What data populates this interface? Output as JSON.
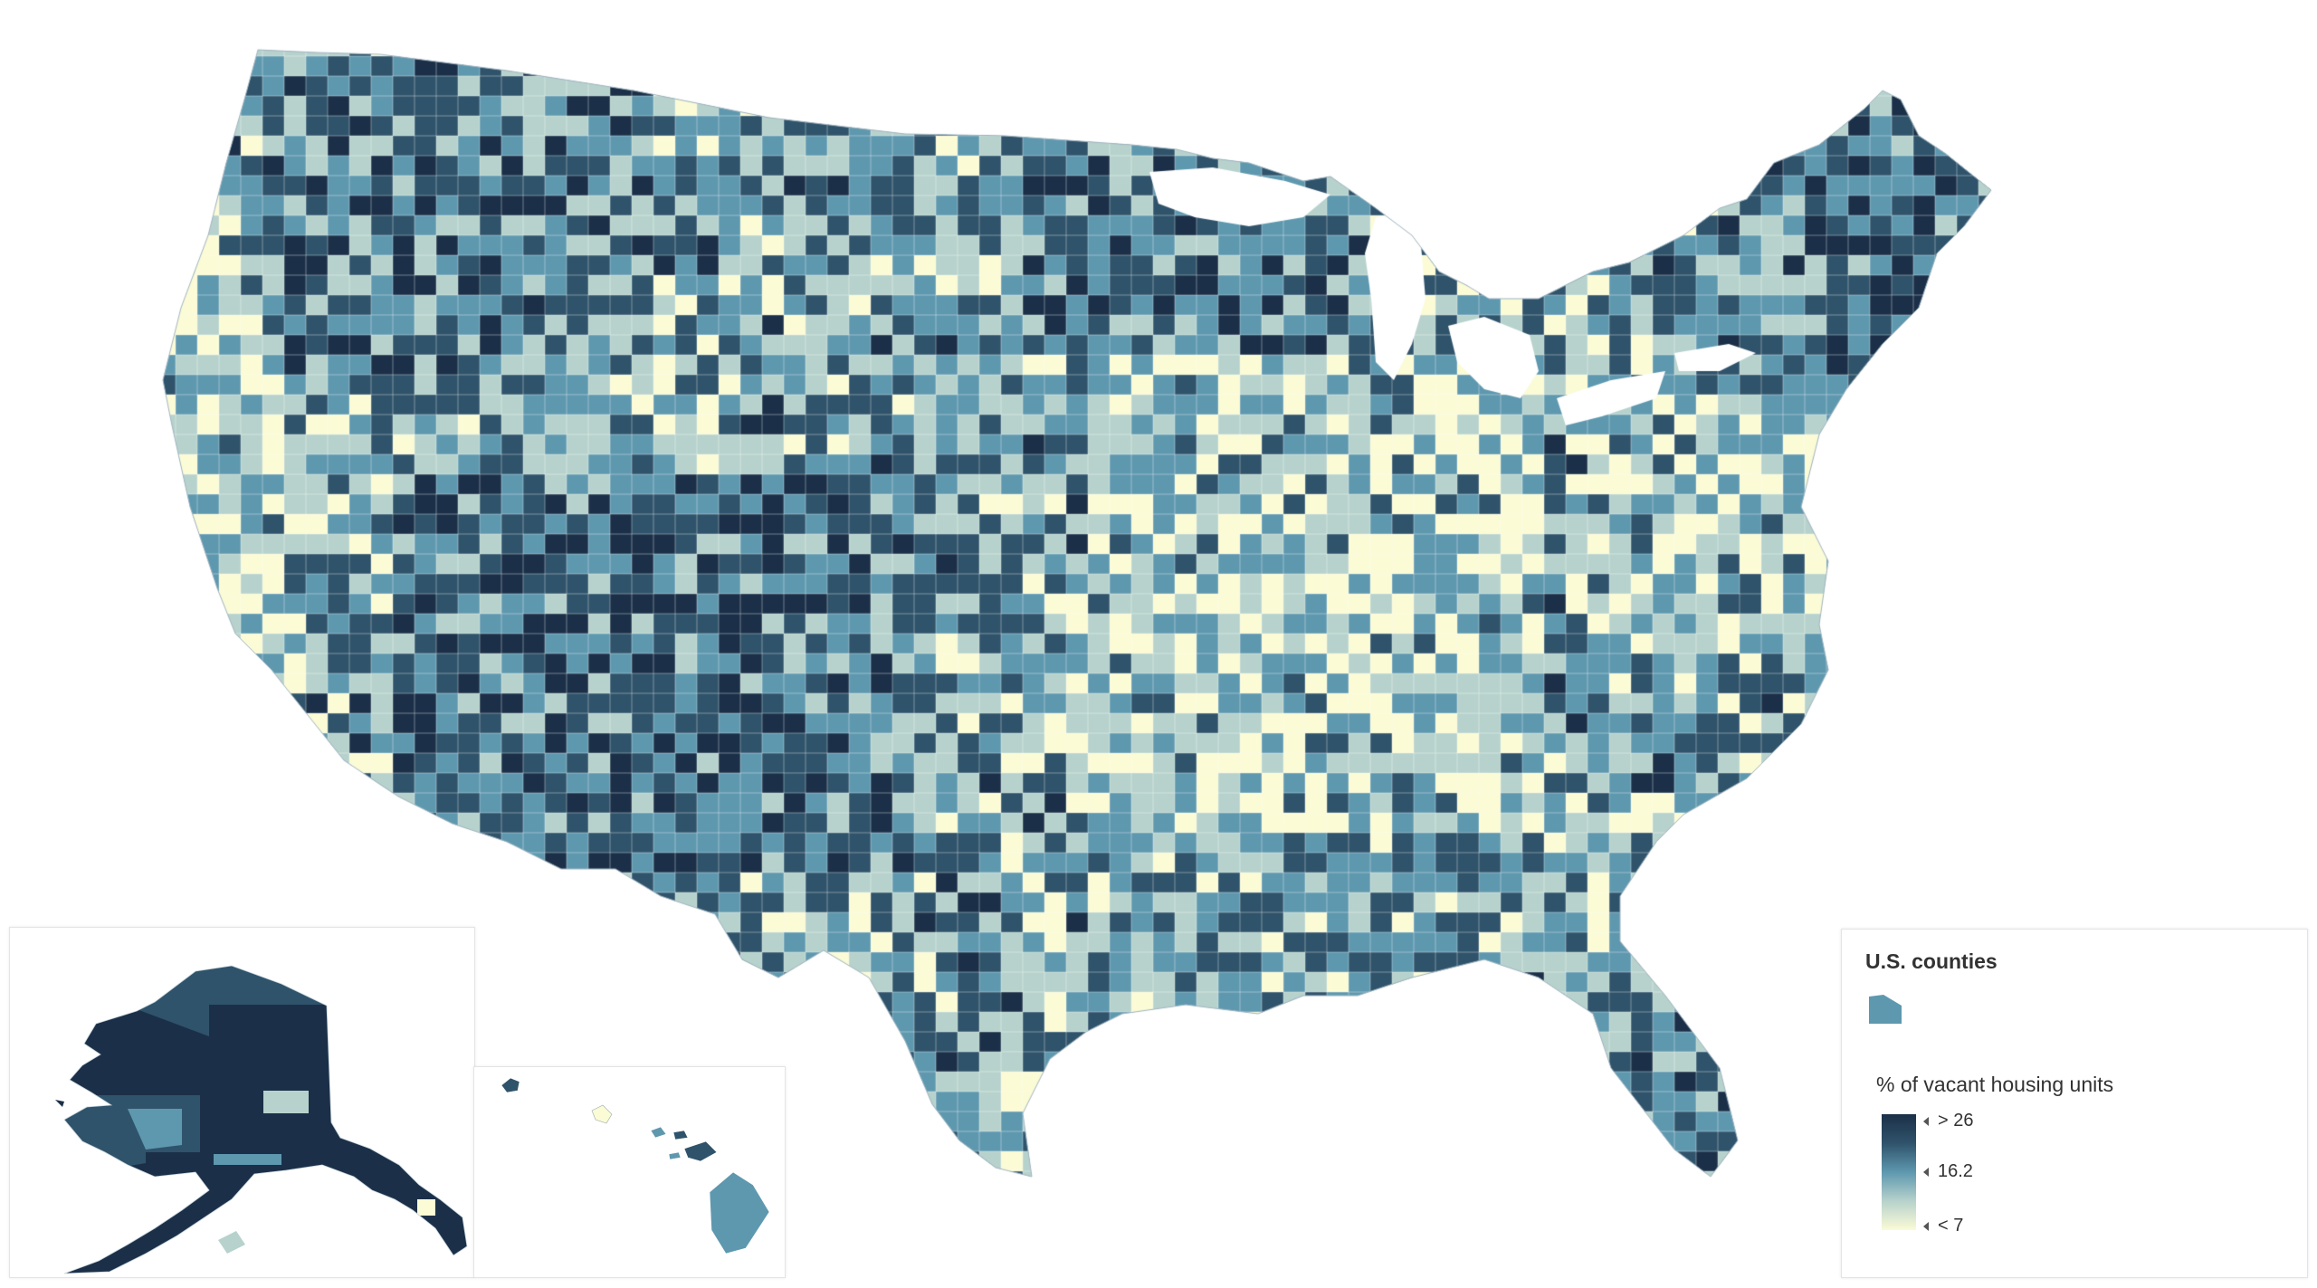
{
  "legend": {
    "layer_title": "U.S. counties",
    "field_title": "% of vacant housing units",
    "ramp": {
      "max_label": "> 26",
      "mid_label": "16.2",
      "min_label": "< 7",
      "stops": [
        26,
        16.2,
        7
      ]
    },
    "colors": {
      "high": "#1b3048",
      "upper": "#2f536b",
      "mid": "#5e98af",
      "lower": "#b7d2cc",
      "low": "#fbfbd6",
      "symbol": "#5e98af"
    }
  },
  "map": {
    "regions": [
      "Contiguous United States",
      "Alaska",
      "Hawaii"
    ],
    "symbol_icon": "polygon-icon"
  }
}
